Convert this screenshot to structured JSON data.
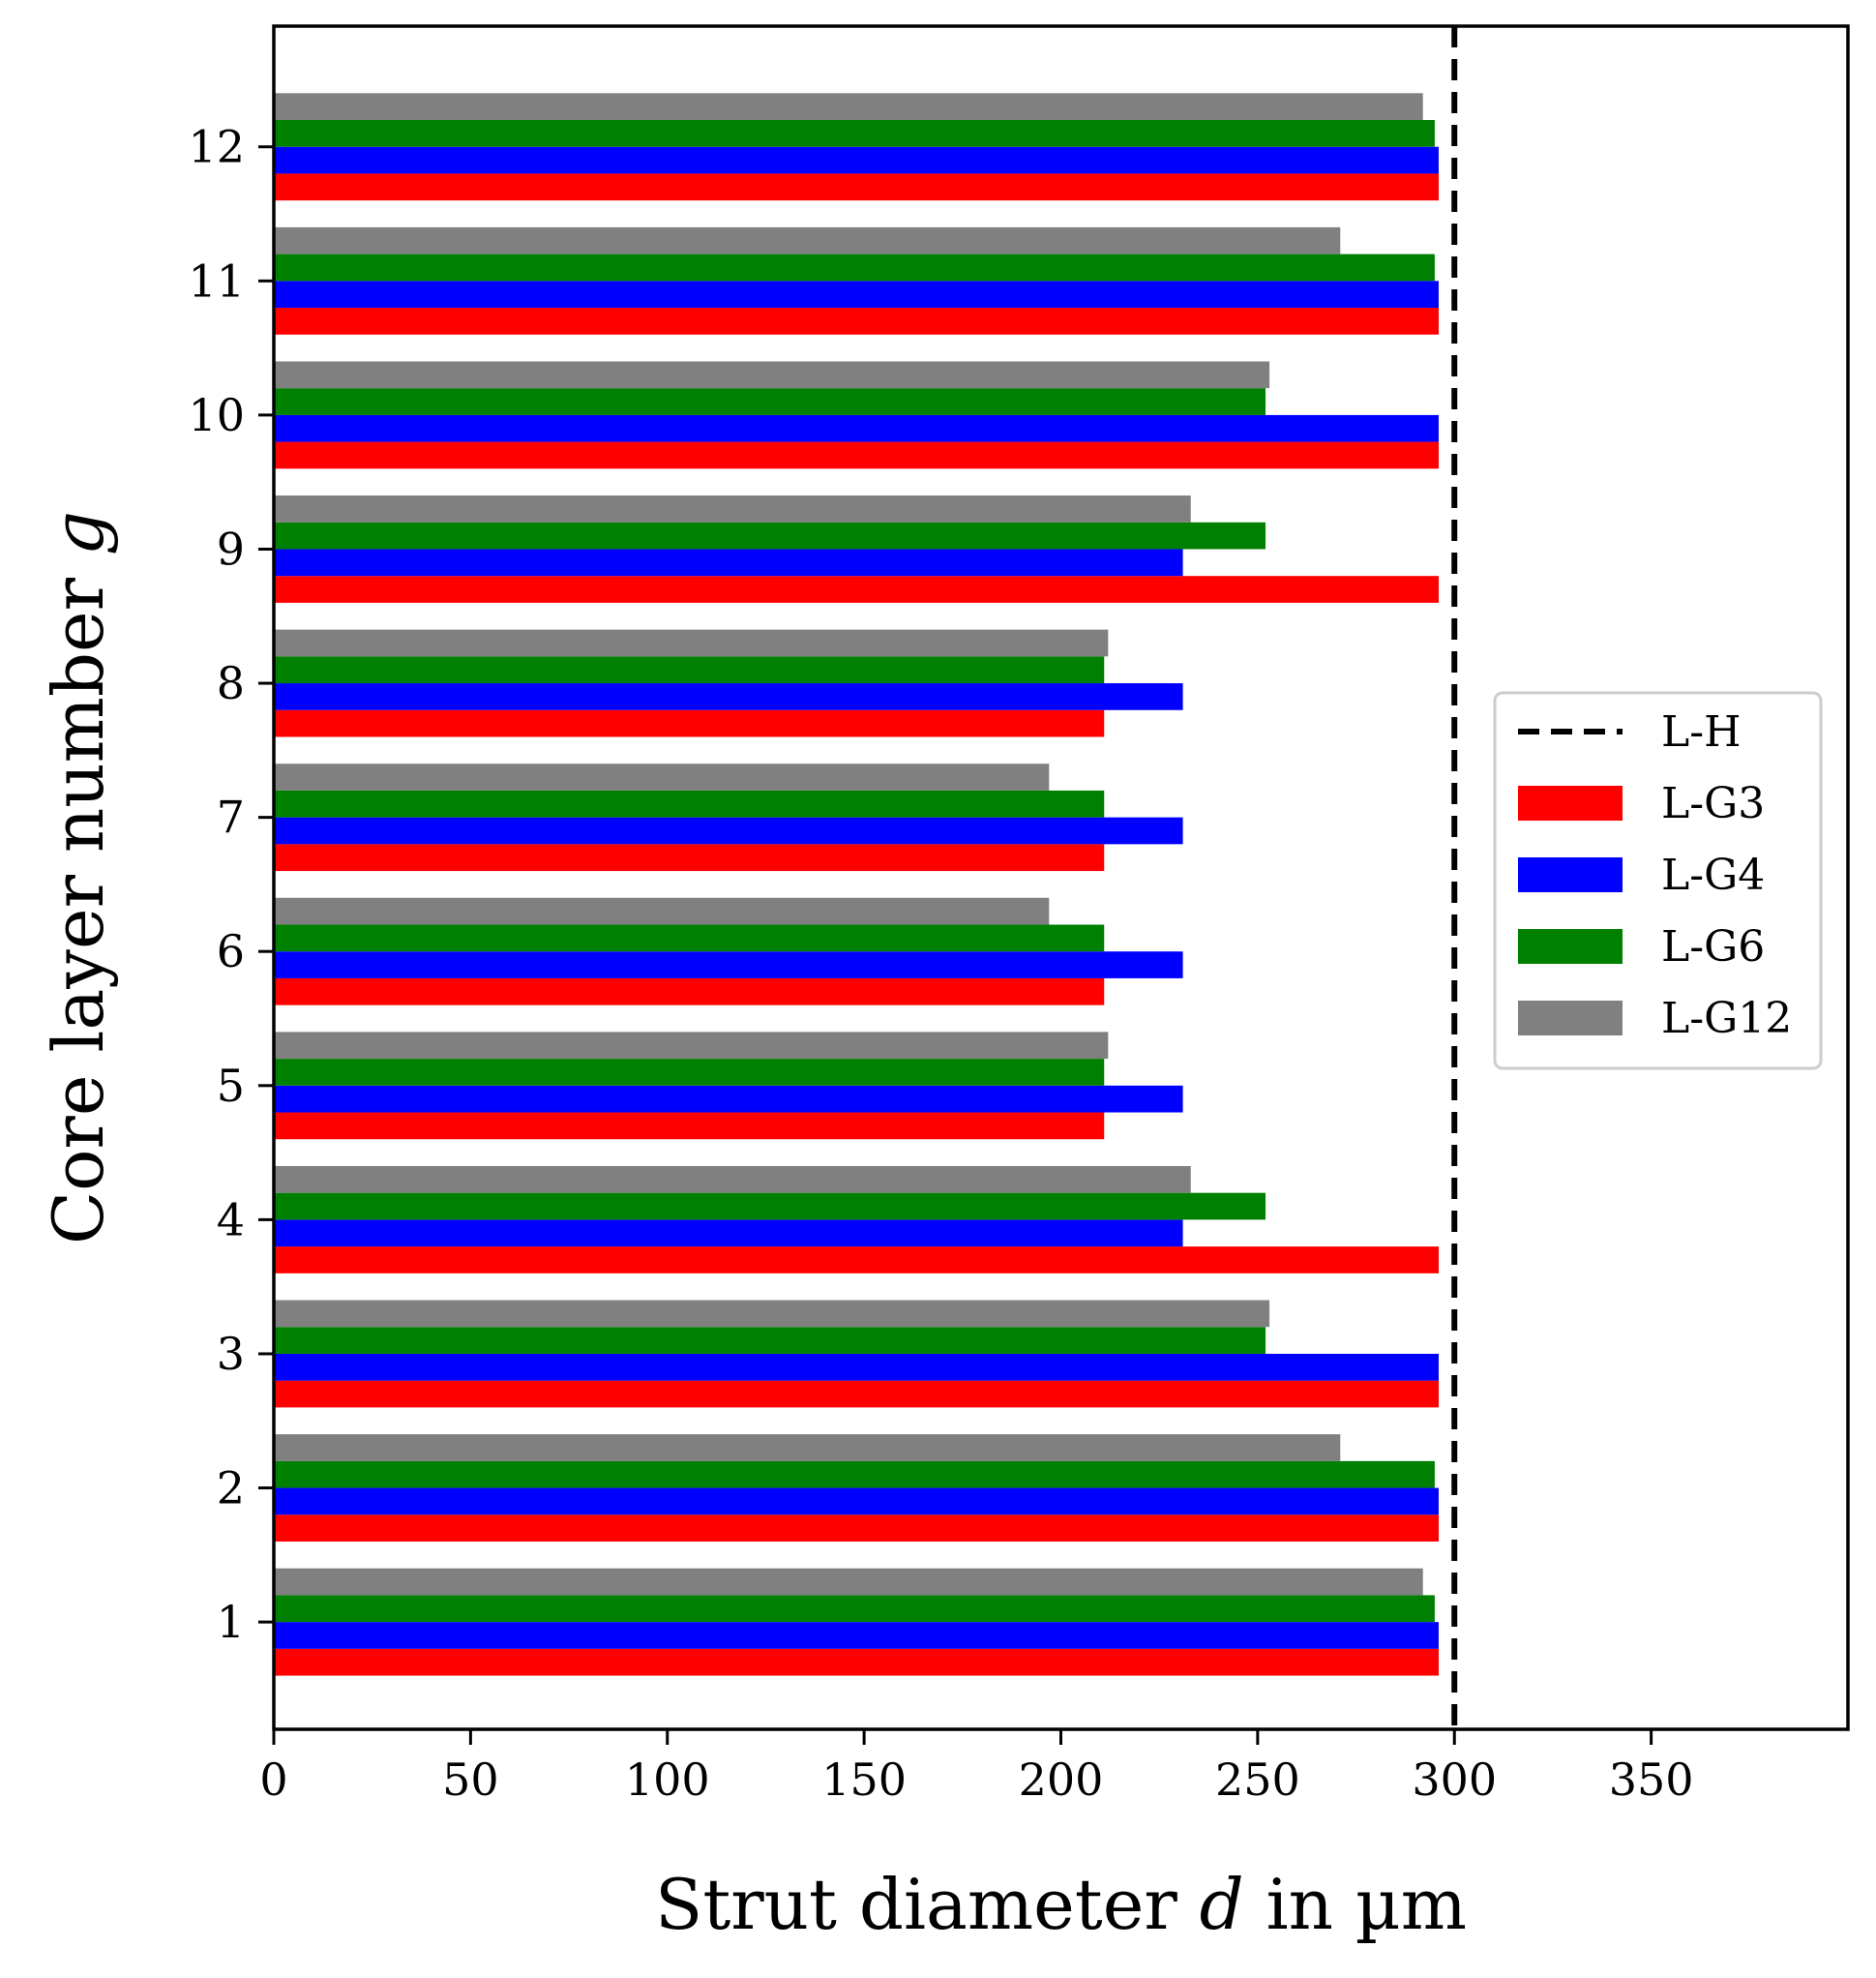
{
  "chart_data": {
    "type": "bar",
    "orientation": "horizontal",
    "title": "",
    "xlabel": "Strut diameter d in µm",
    "xlabel_parts": {
      "pre": "Strut diameter ",
      "var": "d",
      "post": " in µm"
    },
    "ylabel": "Core layer number g",
    "ylabel_parts": {
      "pre": "Core layer number ",
      "var": "g"
    },
    "xlim": [
      0,
      400
    ],
    "ylim": [
      0.2,
      12.9
    ],
    "xticks": [
      0,
      50,
      100,
      150,
      200,
      250,
      300,
      350
    ],
    "yticks": [
      1,
      2,
      3,
      4,
      5,
      6,
      7,
      8,
      9,
      10,
      11,
      12
    ],
    "categories": [
      1,
      2,
      3,
      4,
      5,
      6,
      7,
      8,
      9,
      10,
      11,
      12
    ],
    "series": [
      {
        "name": "L-G3",
        "color": "#ff0000",
        "values": [
          296,
          296,
          296,
          296,
          211,
          211,
          211,
          211,
          296,
          296,
          296,
          296
        ]
      },
      {
        "name": "L-G4",
        "color": "#0000ff",
        "values": [
          296,
          296,
          296,
          231,
          231,
          231,
          231,
          231,
          231,
          296,
          296,
          296
        ]
      },
      {
        "name": "L-G6",
        "color": "#008000",
        "values": [
          295,
          295,
          252,
          252,
          211,
          211,
          211,
          211,
          252,
          252,
          295,
          295
        ]
      },
      {
        "name": "L-G12",
        "color": "#808080",
        "values": [
          292,
          271,
          253,
          233,
          212,
          197,
          197,
          212,
          233,
          253,
          271,
          292
        ]
      }
    ],
    "reference_lines": [
      {
        "name": "L-H",
        "x": 300,
        "color": "#000000",
        "style": "dashed"
      }
    ],
    "legend": {
      "position": "center-right",
      "entries": [
        "L-H",
        "L-G3",
        "L-G4",
        "L-G6",
        "L-G12"
      ]
    },
    "grid": false
  }
}
